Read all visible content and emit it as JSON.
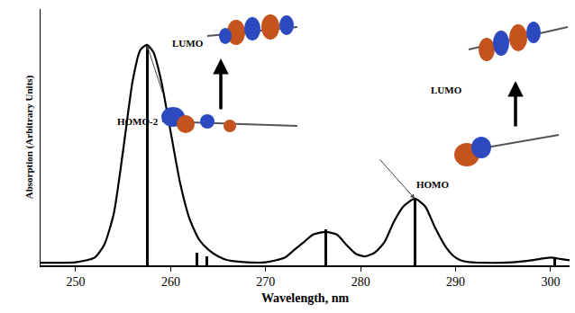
{
  "chart_data": {
    "type": "line",
    "x_label": "Wavelength, nm",
    "y_label": "Absorption (Arbitrary Units)",
    "xlim": [
      246.3,
      302
    ],
    "xticks": [
      250,
      260,
      270,
      280,
      290,
      300
    ],
    "ylim": [
      0,
      1
    ],
    "tick_labels": "x",
    "grid": false,
    "series": [
      {
        "type": "line",
        "color": "#000000",
        "x": [
          246.3,
          248,
          250,
          252,
          253,
          254,
          255,
          256,
          256.8,
          257.5,
          258.2,
          259,
          260,
          261,
          262,
          263,
          264,
          265,
          266,
          268,
          270,
          272,
          273,
          274,
          275,
          276.3,
          277.5,
          278.5,
          279.5,
          280.5,
          281.5,
          282.5,
          283.5,
          284.5,
          285.7,
          286.8,
          287.8,
          289,
          290,
          291,
          293,
          296,
          298,
          300,
          301,
          302
        ],
        "values": [
          0.01,
          0.01,
          0.012,
          0.03,
          0.08,
          0.2,
          0.45,
          0.72,
          0.84,
          0.86,
          0.83,
          0.72,
          0.52,
          0.32,
          0.18,
          0.1,
          0.06,
          0.035,
          0.02,
          0.012,
          0.012,
          0.03,
          0.06,
          0.09,
          0.12,
          0.13,
          0.12,
          0.08,
          0.045,
          0.035,
          0.05,
          0.09,
          0.17,
          0.23,
          0.26,
          0.23,
          0.15,
          0.07,
          0.03,
          0.015,
          0.01,
          0.012,
          0.02,
          0.03,
          0.025,
          0.02
        ]
      },
      {
        "type": "bar",
        "color": "#000000",
        "x": [
          257.5,
          262.8,
          263.8,
          276.3,
          285.7,
          300.4
        ],
        "values": [
          0.86,
          0.05,
          0.035,
          0.14,
          0.26,
          0.03
        ]
      }
    ],
    "annotations": [
      {
        "x": 257.5,
        "y": 0.86,
        "labels": [
          "LUMO",
          "HOMO-2"
        ]
      },
      {
        "x": 285.7,
        "y": 0.26,
        "labels": [
          "LUMO",
          "HOMO"
        ]
      }
    ]
  }
}
